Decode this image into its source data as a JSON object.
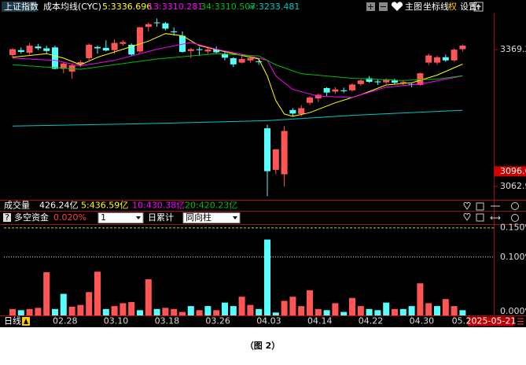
{
  "toolbar": [
    "主图",
    "坐标线",
    "权",
    "设置"
  ],
  "volume_header": {
    "label": "成交量",
    "total": "426.24亿",
    "items": [
      {
        "text": "5:436.59亿",
        "color": "#ffff00"
      },
      {
        "text": "10:430.38亿",
        "color": "#ff00ff"
      },
      {
        "text": "20:420.23亿",
        "color": "#00c000"
      }
    ]
  },
  "indicator": {
    "name": "多空资金",
    "value": "0.020%",
    "period": "1",
    "mode": "日累计",
    "style": "同向柱"
  },
  "period_label": "日线",
  "date_label": "2025-05-21",
  "caption": "（图 2）",
  "chart_data": [
    {
      "type": "candlestick",
      "title": "上证指数",
      "subtitle": "成本均线(CYC)",
      "up_color": "#ff5555",
      "down_color": "#55ffff",
      "open": [
        3357,
        3368,
        3362,
        3376,
        3372,
        3374,
        3326,
        3320,
        3336,
        3350,
        3375,
        3373,
        3368,
        3382,
        3380,
        3365,
        3420,
        3430,
        3428,
        3410,
        3400,
        3366,
        3370,
        3365,
        3370,
        3360,
        3350,
        3340,
        3345,
        3343,
        3193,
        3100,
        3090,
        3234,
        3225,
        3250,
        3260,
        3283,
        3275,
        3278,
        3278,
        3292,
        3305,
        3298,
        3296,
        3300,
        3295,
        3292,
        3290,
        3340,
        3340,
        3352,
        3345,
        3370
      ],
      "high": [
        3372,
        3374,
        3384,
        3382,
        3378,
        3378,
        3342,
        3336,
        3345,
        3383,
        3378,
        3390,
        3392,
        3390,
        3383,
        3420,
        3430,
        3439,
        3431,
        3419,
        3410,
        3373,
        3375,
        3374,
        3376,
        3365,
        3352,
        3355,
        3352,
        3350,
        3201,
        3146,
        3198,
        3238,
        3245,
        3265,
        3271,
        3285,
        3285,
        3284,
        3294,
        3302,
        3310,
        3302,
        3305,
        3304,
        3300,
        3295,
        3318,
        3360,
        3355,
        3358,
        3372,
        3380
      ],
      "low": [
        3350,
        3360,
        3358,
        3368,
        3360,
        3325,
        3316,
        3304,
        3330,
        3345,
        3360,
        3365,
        3360,
        3378,
        3355,
        3362,
        3410,
        3420,
        3412,
        3400,
        3362,
        3350,
        3355,
        3360,
        3360,
        3345,
        3330,
        3338,
        3340,
        3335,
        3041,
        3090,
        3063,
        3220,
        3220,
        3245,
        3252,
        3265,
        3270,
        3272,
        3275,
        3288,
        3295,
        3290,
        3292,
        3292,
        3288,
        3285,
        3288,
        3335,
        3335,
        3342,
        3342,
        3365
      ],
      "close": [
        3370,
        3364,
        3378,
        3372,
        3366,
        3326,
        3338,
        3334,
        3341,
        3380,
        3372,
        3367,
        3384,
        3386,
        3358,
        3419,
        3426,
        3429,
        3416,
        3408,
        3364,
        3370,
        3368,
        3369,
        3363,
        3351,
        3336,
        3348,
        3350,
        3342,
        3097,
        3146,
        3187,
        3226,
        3238,
        3262,
        3268,
        3273,
        3280,
        3276,
        3291,
        3300,
        3297,
        3296,
        3302,
        3295,
        3297,
        3290,
        3316,
        3356,
        3352,
        3345,
        3369,
        3378
      ],
      "series": [
        {
          "name": "5:3336.696",
          "color": "#ffff00",
          "x": [
            0,
            4,
            6,
            8,
            10,
            13,
            16,
            18,
            20,
            22,
            26,
            29,
            30,
            31,
            32,
            33,
            35,
            38,
            41,
            44,
            47,
            50,
            53
          ],
          "values": [
            3352,
            3360,
            3350,
            3335,
            3352,
            3370,
            3388,
            3405,
            3400,
            3378,
            3360,
            3348,
            3310,
            3255,
            3225,
            3220,
            3228,
            3250,
            3268,
            3290,
            3295,
            3312,
            3336.7
          ]
        },
        {
          "name": "13:3310.281",
          "color": "#ff00ff",
          "x": [
            0,
            5,
            8,
            12,
            17,
            21,
            24,
            28,
            30,
            31,
            33,
            36,
            40,
            44,
            48,
            53
          ],
          "values": [
            3350,
            3345,
            3333,
            3345,
            3370,
            3385,
            3370,
            3355,
            3345,
            3310,
            3280,
            3265,
            3262,
            3285,
            3292,
            3310.3
          ]
        },
        {
          "name": "34:3310.507",
          "color": "#00c000",
          "x": [
            0,
            8,
            17,
            24,
            29,
            31,
            34,
            40,
            46,
            50,
            53
          ],
          "values": [
            3335,
            3325,
            3348,
            3360,
            3355,
            3335,
            3315,
            3305,
            3300,
            3303,
            3310.5
          ]
        },
        {
          "name": "∞:3233.481",
          "color": "#00c8c8",
          "x": [
            0,
            15,
            30,
            40,
            53
          ],
          "values": [
            3198,
            3203,
            3210,
            3222,
            3233.5
          ]
        }
      ],
      "ylim": [
        3034.7,
        3450.2
      ],
      "yticks": [
        3369.2,
        3062.9
      ],
      "marker": 3096.6
    },
    {
      "type": "bar",
      "categories": [
        null,
        null,
        null,
        null,
        null,
        "02.28",
        null,
        null,
        null,
        null,
        null,
        "03.10",
        null,
        null,
        null,
        null,
        null,
        "03.18",
        null,
        null,
        null,
        null,
        null,
        "03.26",
        null,
        null,
        null,
        null,
        null,
        "04.03",
        null,
        null,
        null,
        null,
        null,
        "04.14",
        null,
        null,
        null,
        null,
        null,
        "04.22",
        null,
        null,
        null,
        null,
        null,
        "04.30",
        null,
        null,
        null,
        null,
        "05.",
        null
      ],
      "values": [
        0.011,
        0.009,
        0.011,
        0.013,
        0.074,
        0.011,
        0.037,
        0.015,
        0.018,
        0.04,
        0.075,
        0.011,
        0.016,
        0.021,
        0.023,
        0.009,
        0.062,
        0.011,
        0.013,
        0.011,
        0.006,
        0.016,
        0.009,
        0.016,
        0.009,
        0.022,
        0.016,
        0.032,
        0.018,
        0.011,
        0.13,
        0.005,
        0.025,
        0.032,
        0.016,
        0.043,
        0.011,
        0.009,
        0.021,
        0.006,
        0.03,
        0.016,
        0.011,
        0.009,
        0.022,
        0.011,
        0.011,
        0.016,
        0.055,
        0.021,
        0.016,
        0.028,
        0.016,
        0.009
      ],
      "colors": [
        "#ff5555",
        "#55ffff",
        "#ff5555",
        "#ff5555",
        "#ff5555",
        "#55ffff",
        "#55ffff",
        "#ff5555",
        "#ff5555",
        "#ff5555",
        "#ff5555",
        "#55ffff",
        "#ff5555",
        "#ff5555",
        "#ff5555",
        "#55ffff",
        "#ff5555",
        "#55ffff",
        "#ff5555",
        "#ff5555",
        "#ff5555",
        "#55ffff",
        "#ff5555",
        "#55ffff",
        "#ff5555",
        "#55ffff",
        "#55ffff",
        "#ff5555",
        "#ff5555",
        "#55ffff",
        "#55ffff",
        "#55ffff",
        "#ff5555",
        "#ff5555",
        "#ff5555",
        "#ff5555",
        "#ff5555",
        "#55ffff",
        "#ff5555",
        "#55ffff",
        "#ff5555",
        "#ff5555",
        "#55ffff",
        "#55ffff",
        "#55ffff",
        "#ff5555",
        "#55ffff",
        "#55ffff",
        "#ff5555",
        "#ff5555",
        "#55ffff",
        "#ff5555",
        "#ff5555",
        "#55ffff"
      ],
      "ylim": [
        0,
        0.155
      ],
      "yticks": [
        {
          "value": 0.15,
          "label": "0.150%"
        },
        {
          "value": 0.1,
          "label": "0.100%"
        },
        {
          "value": 0,
          "label": "0.000%"
        }
      ],
      "grid": true
    }
  ]
}
